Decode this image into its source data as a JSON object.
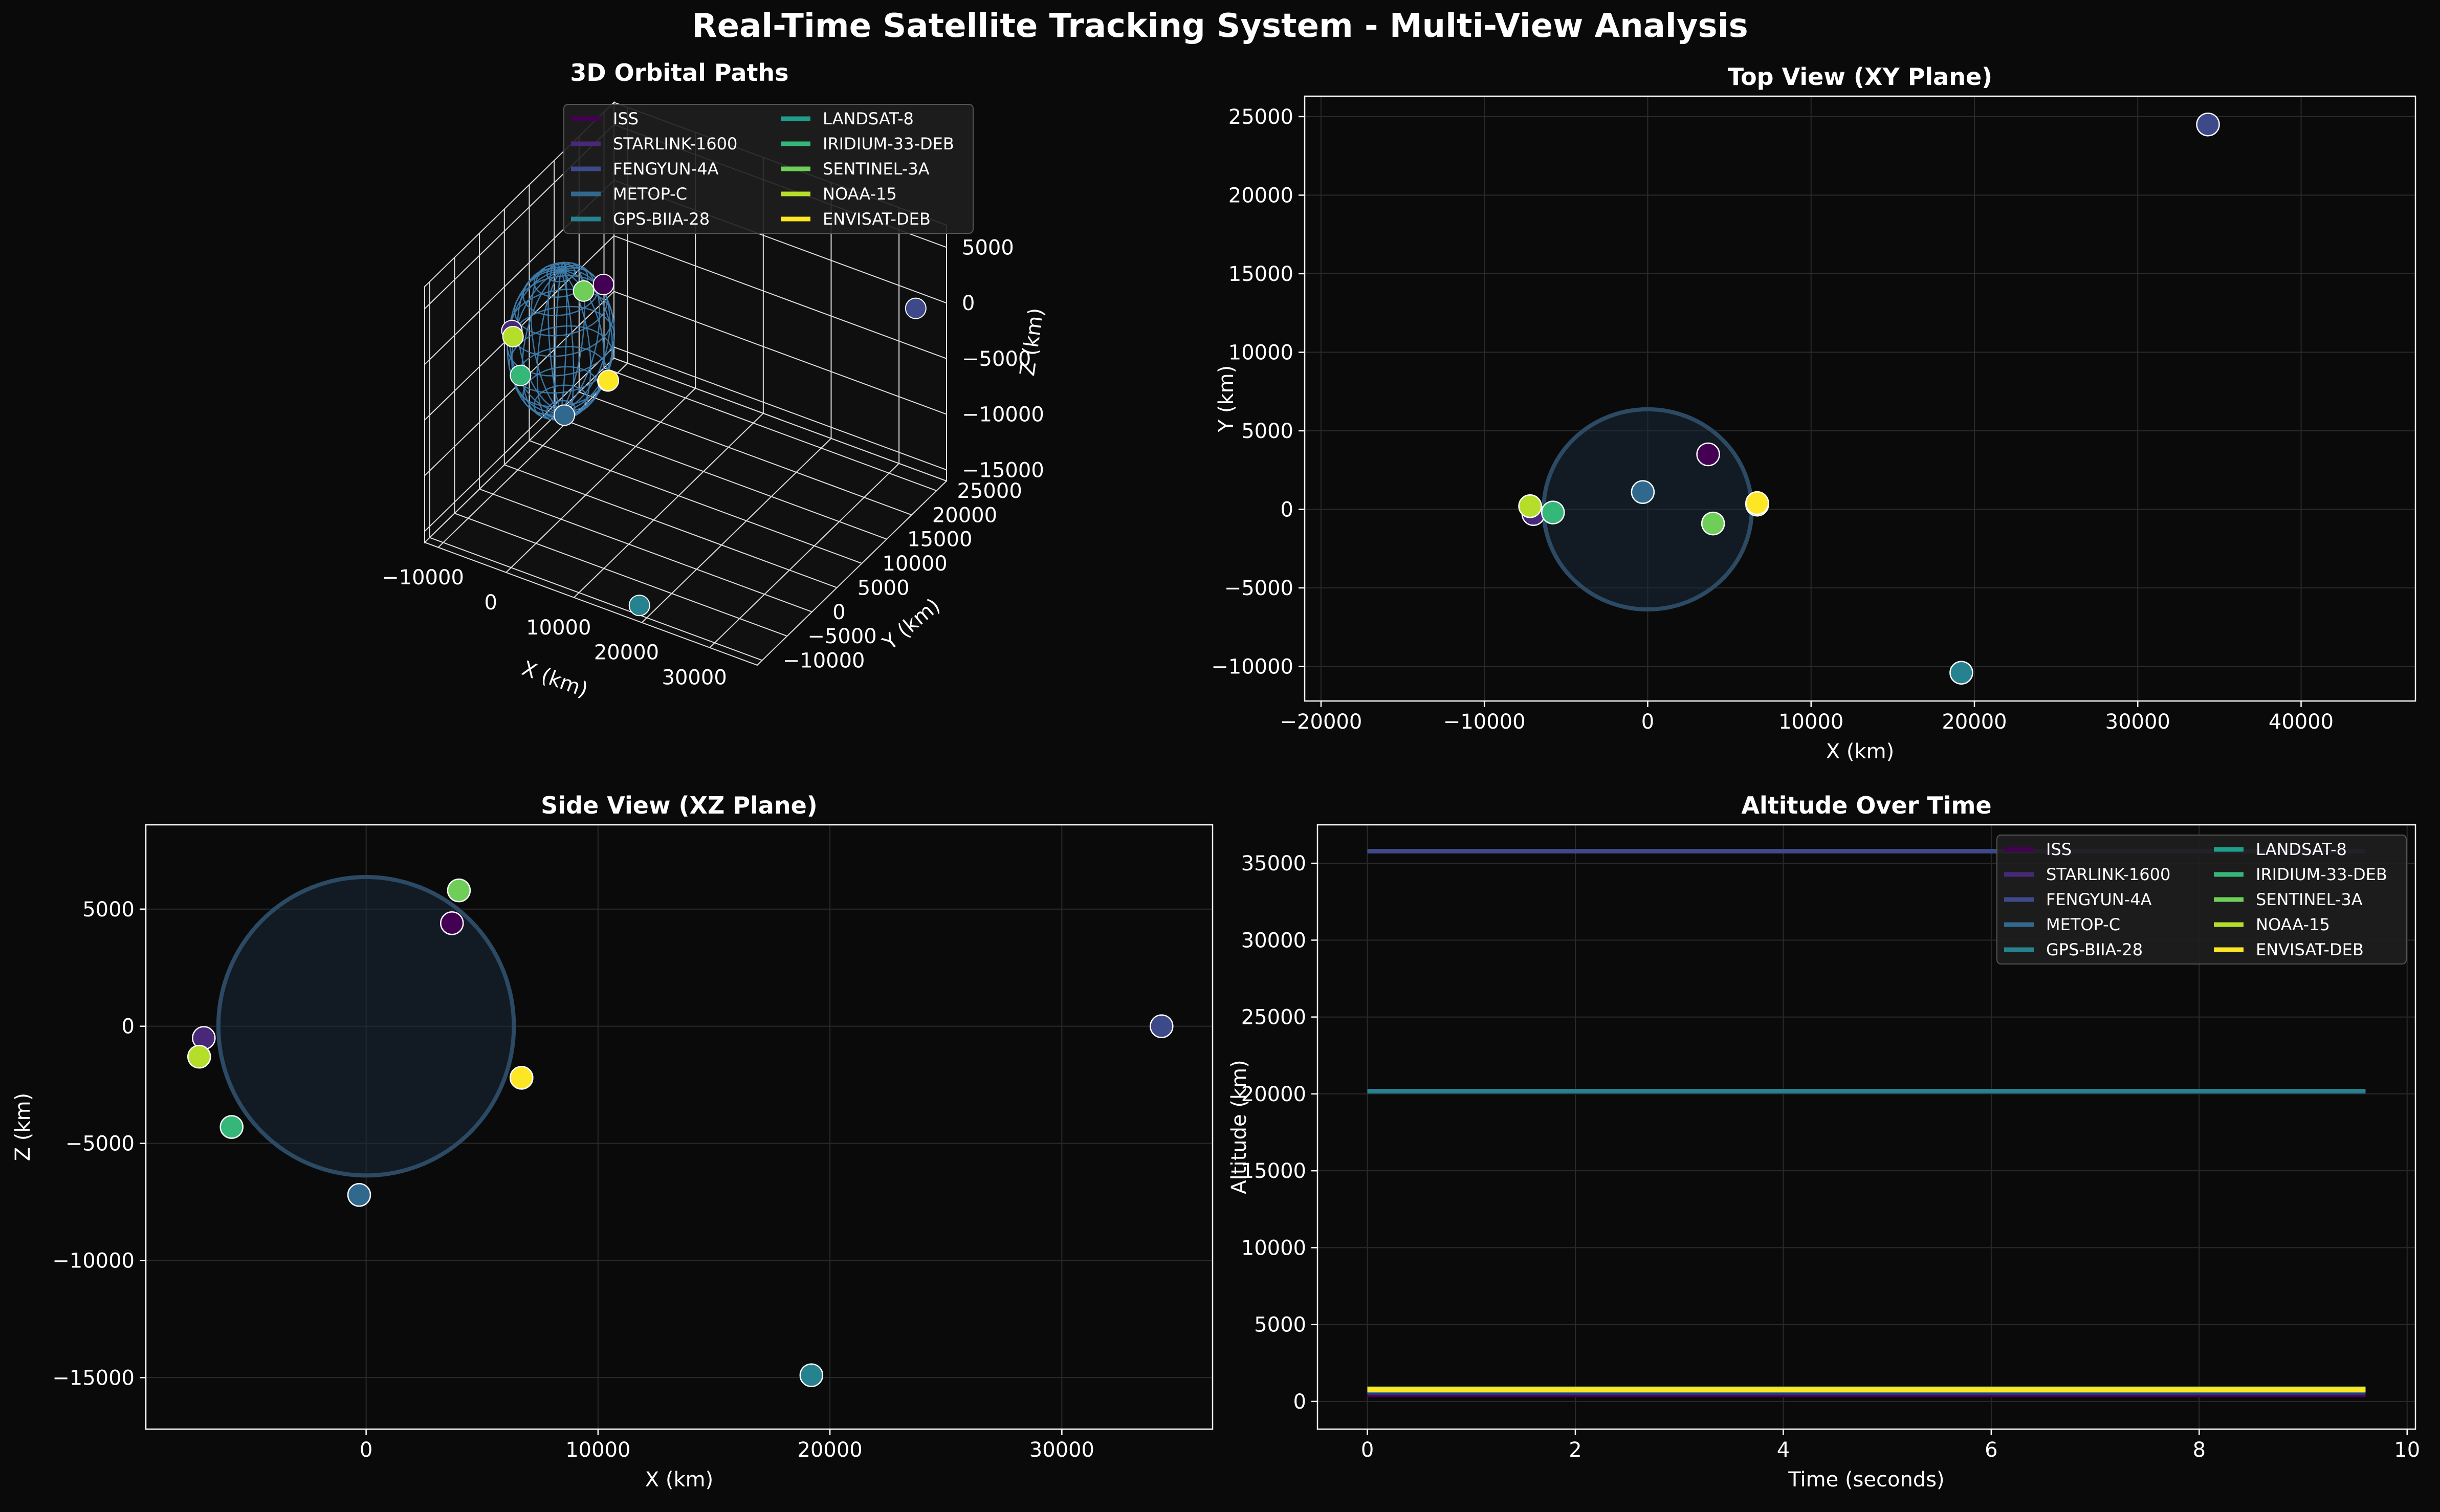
{
  "suptitle": "Real-Time Satellite Tracking System - Multi-View Analysis",
  "satellites": [
    {
      "name": "ISS",
      "color": "#440154"
    },
    {
      "name": "STARLINK-1600",
      "color": "#482878"
    },
    {
      "name": "FENGYUN-4A",
      "color": "#3e4989"
    },
    {
      "name": "METOP-C",
      "color": "#31688e"
    },
    {
      "name": "GPS-BIIA-28",
      "color": "#26828e"
    },
    {
      "name": "LANDSAT-8",
      "color": "#1f9e89"
    },
    {
      "name": "IRIDIUM-33-DEB",
      "color": "#35b779"
    },
    {
      "name": "SENTINEL-3A",
      "color": "#6ece58"
    },
    {
      "name": "NOAA-15",
      "color": "#b5de2b"
    },
    {
      "name": "ENVISAT-DEB",
      "color": "#fde725"
    }
  ],
  "chart_data": [
    {
      "type": "scatter3d",
      "title": "3D Orbital Paths",
      "xlabel": "X (km)",
      "ylabel": "Y (km)",
      "zlabel": "Z (km)",
      "xticks": [
        "−10000",
        "0",
        "10000",
        "20000",
        "30000"
      ],
      "yticks": [
        "−10000",
        "−5000",
        "0",
        "5000",
        "10000",
        "15000",
        "20000",
        "25000"
      ],
      "zticks": [
        "−15000",
        "−10000",
        "−5000",
        "0",
        "5000"
      ],
      "xlim": [
        -12000,
        37000
      ],
      "ylim": [
        -11000,
        27000
      ],
      "zlim": [
        -16000,
        7000
      ],
      "earth_radius": 6371,
      "legend": "upper-right",
      "points": [
        {
          "name": "ISS",
          "x": 3700,
          "y": 3500,
          "z": 4400
        },
        {
          "name": "STARLINK-1600",
          "x": -7000,
          "y": -300,
          "z": -500
        },
        {
          "name": "FENGYUN-4A",
          "x": 34300,
          "y": 24500,
          "z": 0
        },
        {
          "name": "METOP-C",
          "x": -300,
          "y": 1100,
          "z": -7200
        },
        {
          "name": "GPS-BIIA-28",
          "x": 19200,
          "y": -10400,
          "z": -14900
        },
        {
          "name": "LANDSAT-8",
          "x": 6700,
          "y": 300,
          "z": -2200
        },
        {
          "name": "IRIDIUM-33-DEB",
          "x": -5800,
          "y": -200,
          "z": -4300
        },
        {
          "name": "SENTINEL-3A",
          "x": 4000,
          "y": -900,
          "z": 5800
        },
        {
          "name": "NOAA-15",
          "x": -7200,
          "y": 200,
          "z": -1300
        },
        {
          "name": "ENVISAT-DEB",
          "x": 6700,
          "y": 400,
          "z": -2200
        }
      ]
    },
    {
      "type": "scatter",
      "title": "Top View (XY Plane)",
      "xlabel": "X (km)",
      "ylabel": "Y (km)",
      "xlim": [
        -21000,
        47000
      ],
      "ylim": [
        -12200,
        26300
      ],
      "xticks": [
        -20000,
        -10000,
        0,
        10000,
        20000,
        30000,
        40000
      ],
      "yticks": [
        -10000,
        -5000,
        0,
        5000,
        10000,
        15000,
        20000,
        25000
      ],
      "earth_radius": 6371,
      "grid": true,
      "points": [
        {
          "name": "ISS",
          "x": 3700,
          "y": 3500
        },
        {
          "name": "STARLINK-1600",
          "x": -7000,
          "y": -300
        },
        {
          "name": "FENGYUN-4A",
          "x": 34300,
          "y": 24500
        },
        {
          "name": "METOP-C",
          "x": -300,
          "y": 1100
        },
        {
          "name": "GPS-BIIA-28",
          "x": 19200,
          "y": -10400
        },
        {
          "name": "LANDSAT-8",
          "x": 6700,
          "y": 300
        },
        {
          "name": "IRIDIUM-33-DEB",
          "x": -5800,
          "y": -200
        },
        {
          "name": "SENTINEL-3A",
          "x": 4000,
          "y": -900
        },
        {
          "name": "NOAA-15",
          "x": -7200,
          "y": 200
        },
        {
          "name": "ENVISAT-DEB",
          "x": 6700,
          "y": 400
        }
      ]
    },
    {
      "type": "scatter",
      "title": "Side View (XZ Plane)",
      "xlabel": "X (km)",
      "ylabel": "Z (km)",
      "xlim": [
        -9500,
        36500
      ],
      "ylim": [
        -17200,
        8600
      ],
      "xticks": [
        0,
        10000,
        20000,
        30000
      ],
      "yticks": [
        -15000,
        -10000,
        -5000,
        0,
        5000
      ],
      "earth_radius": 6371,
      "grid": true,
      "points": [
        {
          "name": "ISS",
          "x": 3700,
          "z": 4400
        },
        {
          "name": "STARLINK-1600",
          "x": -7000,
          "z": -500
        },
        {
          "name": "FENGYUN-4A",
          "x": 34300,
          "z": 0
        },
        {
          "name": "METOP-C",
          "x": -300,
          "z": -7200
        },
        {
          "name": "GPS-BIIA-28",
          "x": 19200,
          "z": -14900
        },
        {
          "name": "LANDSAT-8",
          "x": 6700,
          "z": -2200
        },
        {
          "name": "IRIDIUM-33-DEB",
          "x": -5800,
          "z": -4300
        },
        {
          "name": "SENTINEL-3A",
          "x": 4000,
          "z": 5800
        },
        {
          "name": "NOAA-15",
          "x": -7200,
          "z": -1300
        },
        {
          "name": "ENVISAT-DEB",
          "x": 6700,
          "z": -2200
        }
      ]
    },
    {
      "type": "line",
      "title": "Altitude Over Time",
      "xlabel": "Time (seconds)",
      "ylabel": "Altitude (km)",
      "xlim": [
        -0.48,
        10.08
      ],
      "ylim": [
        -1800,
        37500
      ],
      "xticks": [
        0,
        2,
        4,
        6,
        8,
        10
      ],
      "yticks": [
        0,
        5000,
        10000,
        15000,
        20000,
        25000,
        30000,
        35000
      ],
      "grid": true,
      "legend": "upper-right",
      "x": [
        0,
        9.6
      ],
      "series": [
        {
          "name": "ISS",
          "values": [
            420,
            420
          ]
        },
        {
          "name": "STARLINK-1600",
          "values": [
            550,
            550
          ]
        },
        {
          "name": "FENGYUN-4A",
          "values": [
            35786,
            35786
          ]
        },
        {
          "name": "METOP-C",
          "values": [
            820,
            820
          ]
        },
        {
          "name": "GPS-BIIA-28",
          "values": [
            20180,
            20180
          ]
        },
        {
          "name": "LANDSAT-8",
          "values": [
            705,
            705
          ]
        },
        {
          "name": "IRIDIUM-33-DEB",
          "values": [
            780,
            780
          ]
        },
        {
          "name": "SENTINEL-3A",
          "values": [
            815,
            815
          ]
        },
        {
          "name": "NOAA-15",
          "values": [
            810,
            810
          ]
        },
        {
          "name": "ENVISAT-DEB",
          "values": [
            770,
            770
          ]
        }
      ]
    }
  ]
}
